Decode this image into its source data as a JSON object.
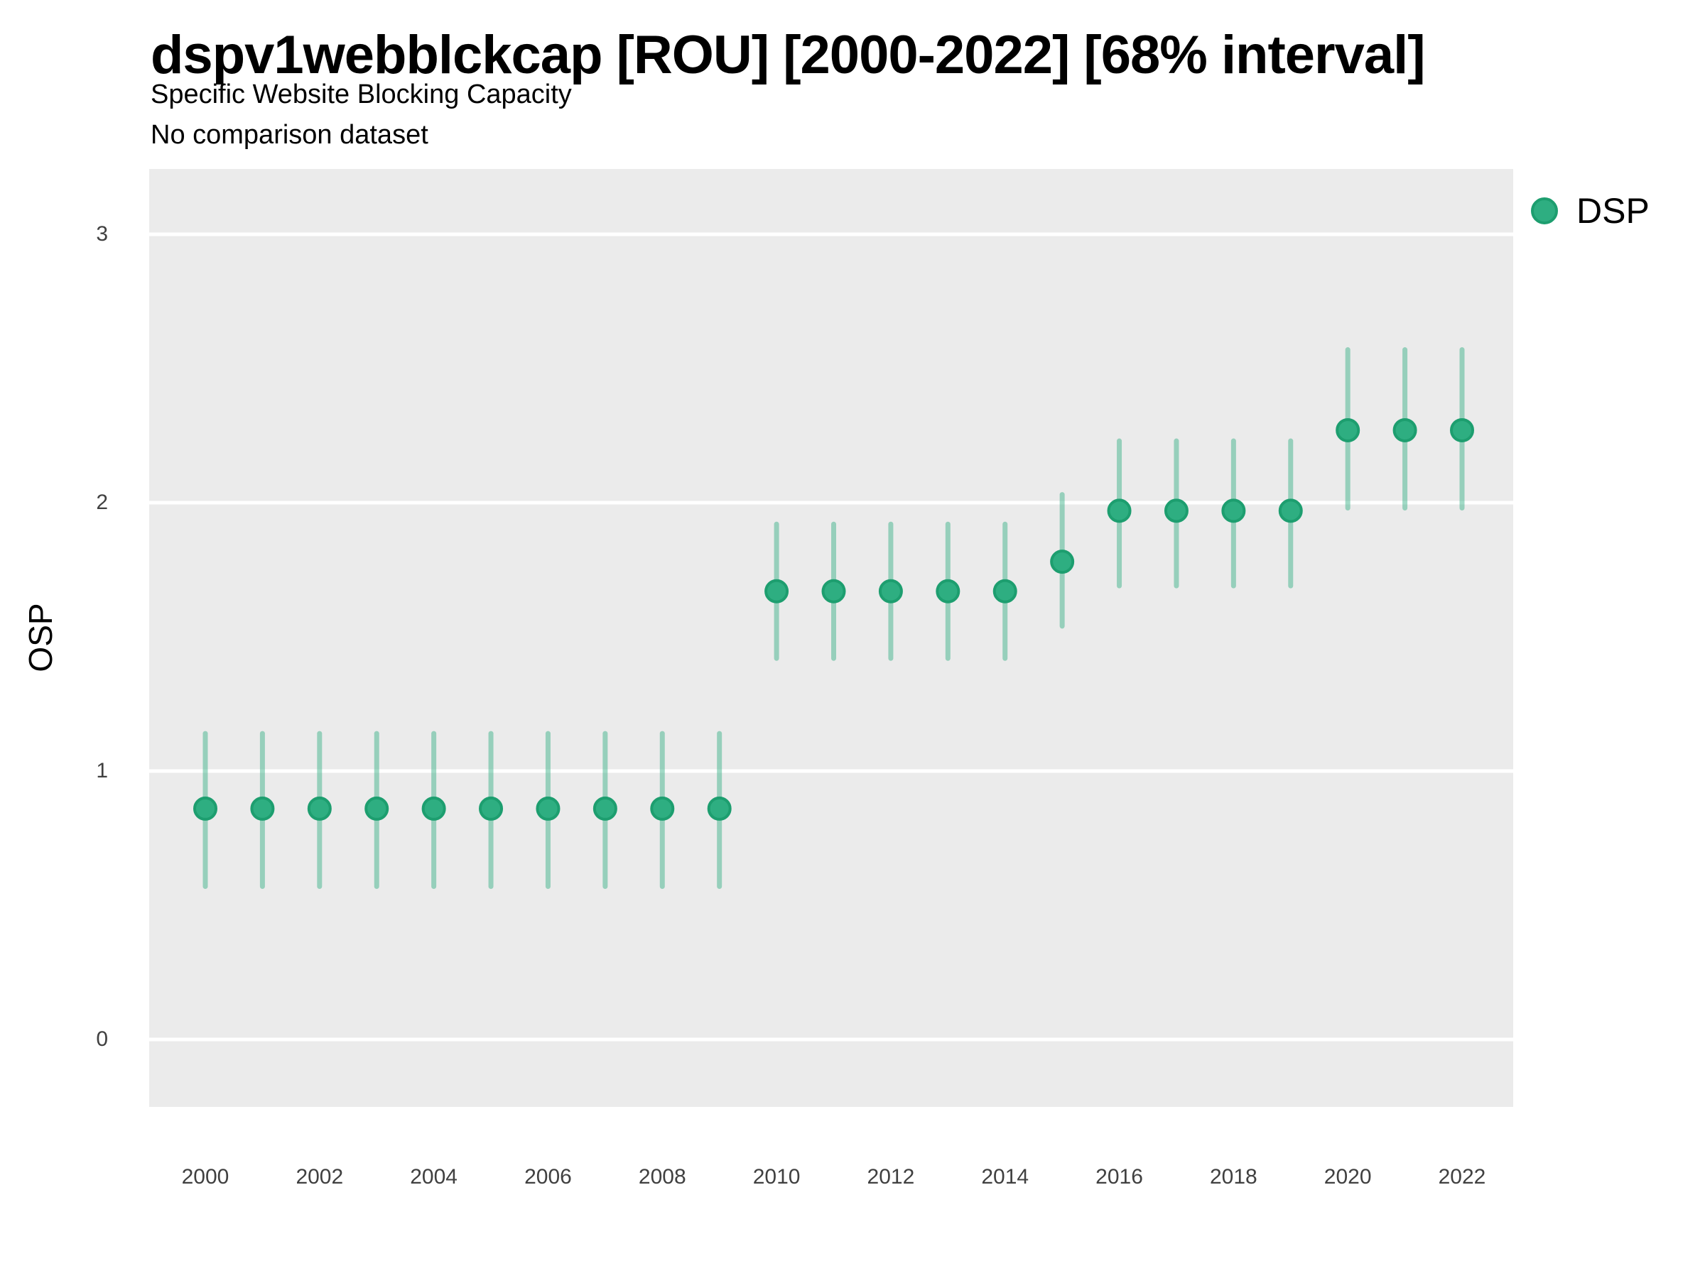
{
  "title": "dspv1webblckcap [ROU] [2000-2022] [68% interval]",
  "subtitle": "Specific Website Blocking Capacity",
  "note": "No comparison dataset",
  "legend": {
    "items": [
      {
        "label": "DSP"
      }
    ]
  },
  "colors": {
    "panel_background": "#ebebeb",
    "gridline": "#ffffff",
    "point_fill": "#2eae81",
    "point_stroke": "#1d9e6f",
    "interval_stroke": "rgba(46,174,129,0.45)",
    "tick_text": "#404040",
    "text": "#000000"
  },
  "chart_data": {
    "type": "scatter",
    "style": "pointrange",
    "title": "dspv1webblckcap [ROU] [2000-2022] [68% interval]",
    "subtitle": "Specific Website Blocking Capacity",
    "note": "No comparison dataset",
    "xlabel": "",
    "ylabel": "OSP",
    "legend_position": "right",
    "grid": "horizontal major gridlines, white on gray panel",
    "x": [
      2000,
      2001,
      2002,
      2003,
      2004,
      2005,
      2006,
      2007,
      2008,
      2009,
      2010,
      2011,
      2012,
      2013,
      2014,
      2015,
      2016,
      2017,
      2018,
      2019,
      2020,
      2021,
      2022
    ],
    "series": [
      {
        "name": "DSP",
        "values": [
          0.86,
          0.86,
          0.86,
          0.86,
          0.86,
          0.86,
          0.86,
          0.86,
          0.86,
          0.86,
          1.67,
          1.67,
          1.67,
          1.67,
          1.67,
          1.78,
          1.97,
          1.97,
          1.97,
          1.97,
          2.27,
          2.27,
          2.27
        ],
        "lower": [
          0.57,
          0.57,
          0.57,
          0.57,
          0.57,
          0.57,
          0.57,
          0.57,
          0.57,
          0.57,
          1.42,
          1.42,
          1.42,
          1.42,
          1.42,
          1.54,
          1.69,
          1.69,
          1.69,
          1.69,
          1.98,
          1.98,
          1.98
        ],
        "upper": [
          1.14,
          1.14,
          1.14,
          1.14,
          1.14,
          1.14,
          1.14,
          1.14,
          1.14,
          1.14,
          1.92,
          1.92,
          1.92,
          1.92,
          1.92,
          2.03,
          2.23,
          2.23,
          2.23,
          2.23,
          2.57,
          2.57,
          2.57
        ]
      }
    ],
    "interval_label": "68% interval",
    "ylim": [
      -0.25,
      3.24
    ],
    "yticks": [
      0,
      1,
      2,
      3
    ],
    "xticks": [
      2000,
      2002,
      2004,
      2006,
      2008,
      2010,
      2012,
      2014,
      2016,
      2018,
      2020,
      2022
    ]
  }
}
